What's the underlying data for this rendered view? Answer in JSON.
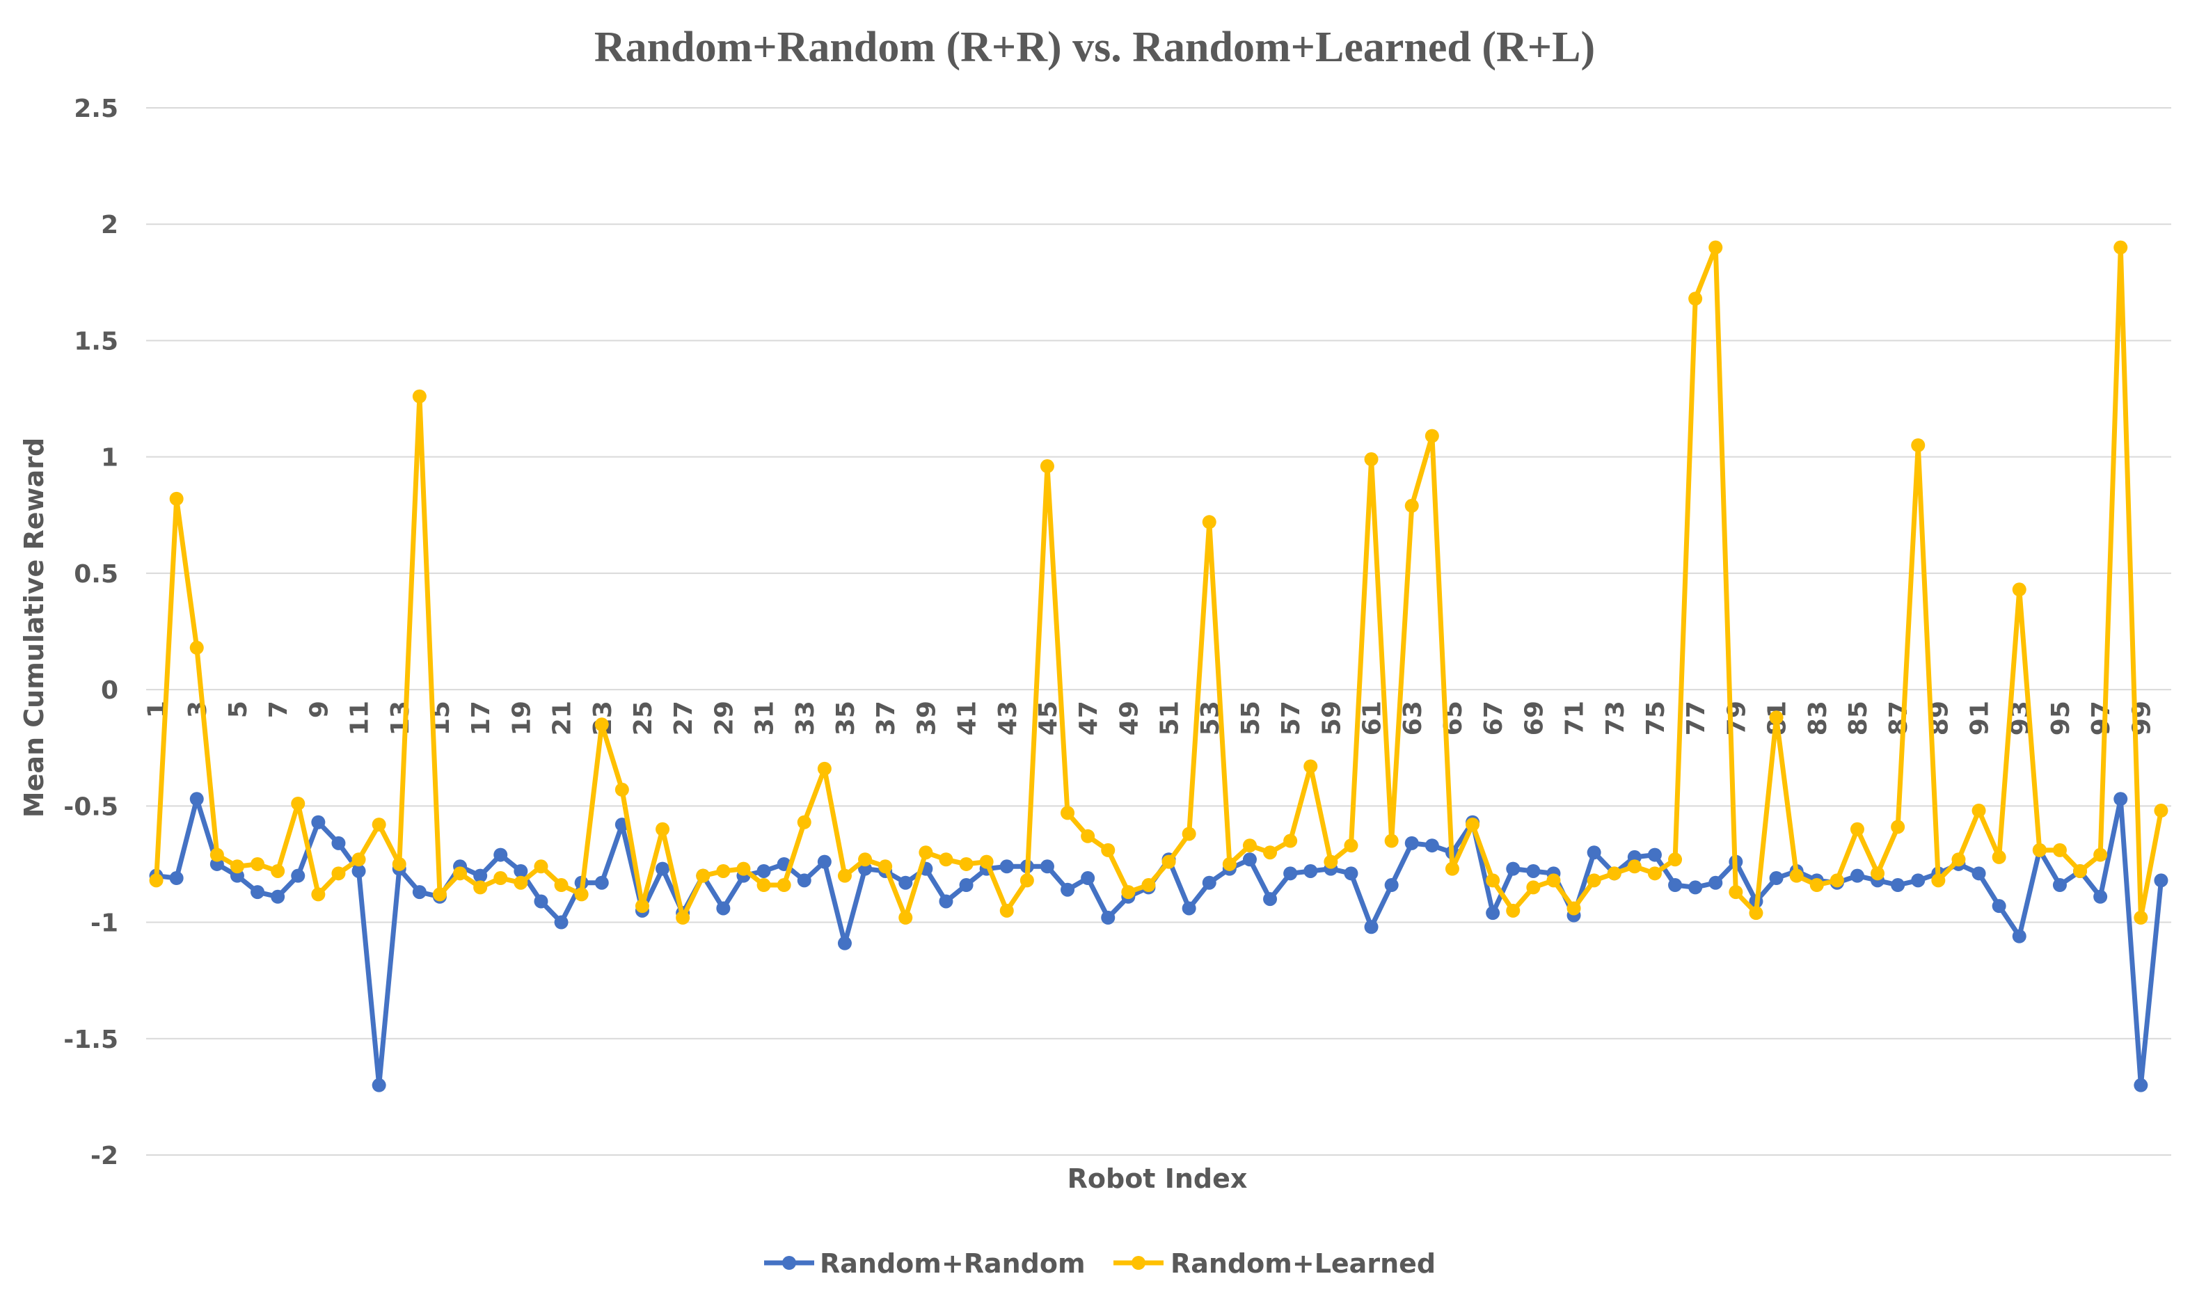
{
  "chart_data": {
    "type": "line",
    "title": "Random+Random (R+R) vs. Random+Learned (R+L)",
    "xlabel": "Robot Index",
    "ylabel": "Mean Cumulative Reward",
    "ylim": [
      -2,
      2.5
    ],
    "y_ticks": [
      {
        "value": 2.5,
        "label": "2.5"
      },
      {
        "value": 2,
        "label": "2"
      },
      {
        "value": 1.5,
        "label": "1.5"
      },
      {
        "value": 1,
        "label": "1"
      },
      {
        "value": 0.5,
        "label": "0.5"
      },
      {
        "value": 0,
        "label": "0"
      },
      {
        "value": -0.5,
        "label": "-0.5"
      },
      {
        "value": -1,
        "label": "-1"
      },
      {
        "value": -1.5,
        "label": "-1.5"
      },
      {
        "value": -2,
        "label": "-2"
      }
    ],
    "x": [
      1,
      2,
      3,
      4,
      5,
      6,
      7,
      8,
      9,
      10,
      11,
      12,
      13,
      14,
      15,
      16,
      17,
      18,
      19,
      20,
      21,
      22,
      23,
      24,
      25,
      26,
      27,
      28,
      29,
      30,
      31,
      32,
      33,
      34,
      35,
      36,
      37,
      38,
      39,
      40,
      41,
      42,
      43,
      44,
      45,
      46,
      47,
      48,
      49,
      50,
      51,
      52,
      53,
      54,
      55,
      56,
      57,
      58,
      59,
      60,
      61,
      62,
      63,
      64,
      65,
      66,
      67,
      68,
      69,
      70,
      71,
      72,
      73,
      74,
      75,
      76,
      77,
      78,
      79,
      80,
      81,
      82,
      83,
      84,
      85,
      86,
      87,
      88,
      89,
      90,
      91,
      92,
      93,
      94,
      95,
      96,
      97,
      98,
      99,
      100
    ],
    "x_tick_labels": [
      "1",
      "3",
      "5",
      "7",
      "9",
      "11",
      "13",
      "15",
      "17",
      "19",
      "21",
      "23",
      "25",
      "27",
      "29",
      "31",
      "33",
      "35",
      "37",
      "39",
      "41",
      "43",
      "45",
      "47",
      "49",
      "51",
      "53",
      "55",
      "57",
      "59",
      "61",
      "63",
      "65",
      "67",
      "69",
      "71",
      "73",
      "75",
      "77",
      "79",
      "81",
      "83",
      "85",
      "87",
      "89",
      "91",
      "93",
      "95",
      "97",
      "99"
    ],
    "grid": true,
    "legend_position": "bottom",
    "series": [
      {
        "name": "Random+Random",
        "color": "#4472c4",
        "values": [
          -0.8,
          -0.81,
          -0.47,
          -0.75,
          -0.8,
          -0.87,
          -0.89,
          -0.8,
          -0.57,
          -0.66,
          -0.78,
          -1.7,
          -0.77,
          -0.87,
          -0.89,
          -0.76,
          -0.8,
          -0.71,
          -0.78,
          -0.91,
          -1.0,
          -0.83,
          -0.83,
          -0.58,
          -0.95,
          -0.77,
          -0.96,
          -0.8,
          -0.94,
          -0.8,
          -0.78,
          -0.75,
          -0.82,
          -0.74,
          -1.09,
          -0.77,
          -0.78,
          -0.83,
          -0.77,
          -0.91,
          -0.84,
          -0.77,
          -0.76,
          -0.76,
          -0.76,
          -0.86,
          -0.81,
          -0.98,
          -0.89,
          -0.85,
          -0.73,
          -0.94,
          -0.83,
          -0.77,
          -0.73,
          -0.9,
          -0.79,
          -0.78,
          -0.77,
          -0.79,
          -1.02,
          -0.84,
          -0.66,
          -0.67,
          -0.7,
          -0.57,
          -0.96,
          -0.77,
          -0.78,
          -0.79,
          -0.97,
          -0.7,
          -0.79,
          -0.72,
          -0.71,
          -0.84,
          -0.85,
          -0.83,
          -0.74,
          -0.91,
          -0.81,
          -0.78,
          -0.82,
          -0.83,
          -0.8,
          -0.82,
          -0.84,
          -0.82,
          -0.79,
          -0.75,
          -0.79,
          -0.93,
          -1.06,
          -0.69,
          -0.84,
          -0.78,
          -0.89,
          -0.47,
          -1.7,
          -0.82
        ]
      },
      {
        "name": "Random+Learned",
        "color": "#ffc000",
        "values": [
          -0.82,
          0.82,
          0.18,
          -0.71,
          -0.76,
          -0.75,
          -0.78,
          -0.49,
          -0.88,
          -0.79,
          -0.73,
          -0.58,
          -0.75,
          1.26,
          -0.88,
          -0.79,
          -0.85,
          -0.81,
          -0.83,
          -0.76,
          -0.84,
          -0.88,
          -0.15,
          -0.43,
          -0.93,
          -0.6,
          -0.98,
          -0.8,
          -0.78,
          -0.77,
          -0.84,
          -0.84,
          -0.57,
          -0.34,
          -0.8,
          -0.73,
          -0.76,
          -0.98,
          -0.7,
          -0.73,
          -0.75,
          -0.74,
          -0.95,
          -0.82,
          0.96,
          -0.53,
          -0.63,
          -0.69,
          -0.87,
          -0.84,
          -0.74,
          -0.62,
          0.72,
          -0.75,
          -0.67,
          -0.7,
          -0.65,
          -0.33,
          -0.74,
          -0.67,
          0.99,
          -0.65,
          0.79,
          1.09,
          -0.77,
          -0.58,
          -0.82,
          -0.95,
          -0.85,
          -0.82,
          -0.94,
          -0.82,
          -0.79,
          -0.76,
          -0.79,
          -0.73,
          1.68,
          1.9,
          -0.87,
          -0.96,
          -0.12,
          -0.8,
          -0.84,
          -0.82,
          -0.6,
          -0.79,
          -0.59,
          1.05,
          -0.82,
          -0.73,
          -0.52,
          -0.72,
          0.43,
          -0.69,
          -0.69,
          -0.78,
          -0.71,
          1.9,
          -0.98,
          -0.52
        ]
      }
    ]
  }
}
